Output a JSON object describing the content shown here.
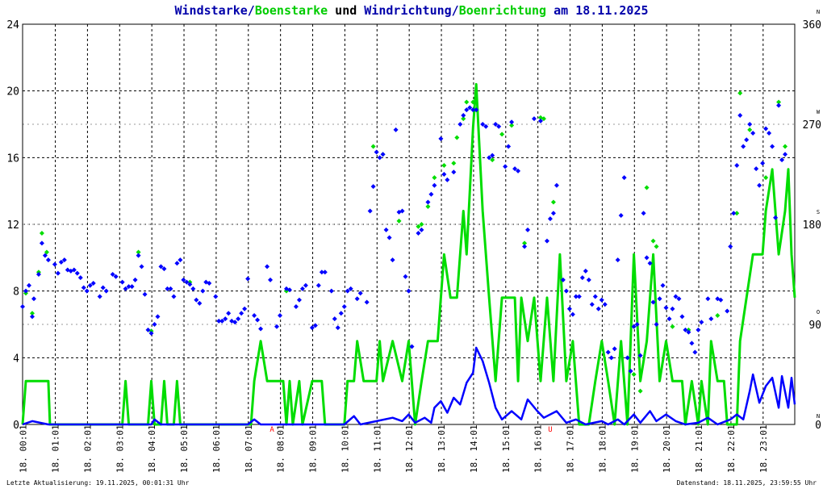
{
  "title": {
    "part1": "Windstarke",
    "sep1": "/",
    "part2": "Boenstarke",
    "part3": " und ",
    "part4": "Windrichtung",
    "sep2": "/",
    "part5": "Boenrichtung",
    "part6": " am 18.11.2025"
  },
  "footer": {
    "left": "Letzte Aktualisierung: 19.11.2025, 00:01:31 Uhr",
    "right": "Datenstand: 18.11.2025, 23:59:55 Uhr"
  },
  "colors": {
    "wind": "#0000ff",
    "gust": "#00dd00",
    "grid": "#000000",
    "title_blue": "#0000aa",
    "title_green": "#00cc00",
    "marker_red": "#ff0000"
  },
  "chart_data": {
    "type": "line",
    "y_left": {
      "ticks": [
        "0",
        "4",
        "8",
        "12",
        "16",
        "20",
        "24"
      ],
      "lim": [
        0,
        24
      ]
    },
    "y_right": {
      "ticks": [
        "0",
        "90",
        "180",
        "270",
        "360"
      ],
      "lim": [
        0,
        360
      ],
      "compass": [
        "N",
        "O",
        "S",
        "W",
        "N"
      ]
    },
    "x_labels": [
      "18. 00:01",
      "18. 01:01",
      "18. 02:01",
      "18. 03:01",
      "18. 04:01",
      "18. 05:01",
      "18. 06:01",
      "18. 07:01",
      "18. 08:01",
      "18. 09:01",
      "18. 10:01",
      "18. 11:01",
      "18. 12:01",
      "18. 13:01",
      "18. 14:01",
      "18. 15:01",
      "18. 16:01",
      "18. 17:01",
      "18. 18:01",
      "18. 19:01",
      "18. 20:01",
      "18. 21:01",
      "18. 22:01",
      "18. 23:01"
    ],
    "x_markers": [
      {
        "hour": 7.75,
        "label": "A"
      },
      {
        "hour": 16.4,
        "label": "U"
      }
    ],
    "wind_speed": [
      [
        0,
        0
      ],
      [
        0.3,
        0.2
      ],
      [
        0.8,
        0
      ],
      [
        4,
        0
      ],
      [
        4.1,
        0.3
      ],
      [
        4.3,
        0
      ],
      [
        7,
        0
      ],
      [
        7.2,
        0.3
      ],
      [
        7.4,
        0
      ],
      [
        9,
        0
      ],
      [
        10,
        0
      ],
      [
        10.3,
        0.5
      ],
      [
        10.5,
        0
      ],
      [
        11,
        0.2
      ],
      [
        11.5,
        0.4
      ],
      [
        11.8,
        0.2
      ],
      [
        12,
        0.6
      ],
      [
        12.2,
        0.1
      ],
      [
        12.5,
        0.4
      ],
      [
        12.7,
        0.1
      ],
      [
        12.8,
        1
      ],
      [
        13,
        1.4
      ],
      [
        13.2,
        0.7
      ],
      [
        13.4,
        1.6
      ],
      [
        13.6,
        1.2
      ],
      [
        13.8,
        2.5
      ],
      [
        14,
        3.1
      ],
      [
        14.1,
        4.6
      ],
      [
        14.3,
        3.8
      ],
      [
        14.5,
        2.5
      ],
      [
        14.7,
        1
      ],
      [
        14.9,
        0.3
      ],
      [
        15.2,
        0.8
      ],
      [
        15.5,
        0.3
      ],
      [
        15.7,
        1.5
      ],
      [
        16,
        0.8
      ],
      [
        16.2,
        0.4
      ],
      [
        16.6,
        0.8
      ],
      [
        16.9,
        0.1
      ],
      [
        17.2,
        0.3
      ],
      [
        17.5,
        0
      ],
      [
        18,
        0.2
      ],
      [
        18.2,
        0
      ],
      [
        18.5,
        0.3
      ],
      [
        18.7,
        0
      ],
      [
        19,
        0.6
      ],
      [
        19.2,
        0.1
      ],
      [
        19.5,
        0.8
      ],
      [
        19.7,
        0.2
      ],
      [
        20,
        0.6
      ],
      [
        20.3,
        0.2
      ],
      [
        20.6,
        0
      ],
      [
        21,
        0.1
      ],
      [
        21.3,
        0.4
      ],
      [
        21.6,
        0
      ],
      [
        22,
        0.3
      ],
      [
        22.2,
        0.6
      ],
      [
        22.4,
        0.3
      ],
      [
        22.6,
        2
      ],
      [
        22.7,
        3
      ],
      [
        22.9,
        1.3
      ],
      [
        23.1,
        2.3
      ],
      [
        23.3,
        2.8
      ],
      [
        23.5,
        1
      ],
      [
        23.6,
        2.9
      ],
      [
        23.8,
        1
      ],
      [
        23.9,
        2.8
      ],
      [
        24,
        1.2
      ]
    ],
    "gust_speed": [
      [
        0,
        0
      ],
      [
        0.1,
        2.6
      ],
      [
        0.8,
        2.6
      ],
      [
        0.85,
        0
      ],
      [
        3.1,
        0
      ],
      [
        3.2,
        2.6
      ],
      [
        3.3,
        0
      ],
      [
        3.9,
        0
      ],
      [
        4,
        2.6
      ],
      [
        4.1,
        0
      ],
      [
        4.3,
        0
      ],
      [
        4.4,
        2.6
      ],
      [
        4.5,
        0
      ],
      [
        4.7,
        0
      ],
      [
        4.8,
        2.6
      ],
      [
        4.9,
        0
      ],
      [
        7.1,
        0
      ],
      [
        7.2,
        2.6
      ],
      [
        7.4,
        5
      ],
      [
        7.6,
        2.6
      ],
      [
        8.1,
        2.6
      ],
      [
        8.2,
        0
      ],
      [
        8.3,
        2.6
      ],
      [
        8.4,
        0
      ],
      [
        8.6,
        2.6
      ],
      [
        8.7,
        0
      ],
      [
        9,
        2.6
      ],
      [
        9.3,
        2.6
      ],
      [
        9.4,
        0
      ],
      [
        10,
        0
      ],
      [
        10.1,
        2.6
      ],
      [
        10.3,
        2.6
      ],
      [
        10.4,
        5
      ],
      [
        10.6,
        2.6
      ],
      [
        11,
        2.6
      ],
      [
        11.1,
        5
      ],
      [
        11.2,
        2.6
      ],
      [
        11.5,
        5
      ],
      [
        11.8,
        2.6
      ],
      [
        12,
        5
      ],
      [
        12.2,
        0
      ],
      [
        12.4,
        2.6
      ],
      [
        12.6,
        5
      ],
      [
        12.9,
        5
      ],
      [
        13,
        7.6
      ],
      [
        13.1,
        10.2
      ],
      [
        13.3,
        7.6
      ],
      [
        13.5,
        7.6
      ],
      [
        13.6,
        10.2
      ],
      [
        13.7,
        12.8
      ],
      [
        13.8,
        10.2
      ],
      [
        14,
        17.8
      ],
      [
        14.1,
        20.4
      ],
      [
        14.3,
        12.8
      ],
      [
        14.5,
        7.6
      ],
      [
        14.7,
        2.6
      ],
      [
        14.9,
        7.6
      ],
      [
        15.3,
        7.6
      ],
      [
        15.4,
        2.6
      ],
      [
        15.5,
        7.6
      ],
      [
        15.7,
        5
      ],
      [
        15.9,
        7.6
      ],
      [
        16.1,
        2.6
      ],
      [
        16.3,
        7.6
      ],
      [
        16.5,
        2.6
      ],
      [
        16.7,
        10.2
      ],
      [
        16.9,
        2.6
      ],
      [
        17.1,
        5
      ],
      [
        17.3,
        0
      ],
      [
        17.6,
        0
      ],
      [
        17.8,
        2.6
      ],
      [
        18,
        5
      ],
      [
        18.2,
        2.6
      ],
      [
        18.4,
        0
      ],
      [
        18.6,
        5
      ],
      [
        18.8,
        0
      ],
      [
        19,
        10.2
      ],
      [
        19.2,
        2.6
      ],
      [
        19.4,
        5
      ],
      [
        19.6,
        10.2
      ],
      [
        19.8,
        2.6
      ],
      [
        20,
        5
      ],
      [
        20.2,
        2.6
      ],
      [
        20.5,
        2.6
      ],
      [
        20.6,
        0
      ],
      [
        20.8,
        2.6
      ],
      [
        21,
        0
      ],
      [
        21.1,
        2.6
      ],
      [
        21.3,
        0
      ],
      [
        21.4,
        5
      ],
      [
        21.6,
        2.6
      ],
      [
        21.8,
        2.6
      ],
      [
        21.9,
        0
      ],
      [
        22.2,
        0
      ],
      [
        22.3,
        5
      ],
      [
        22.5,
        7.6
      ],
      [
        22.7,
        10.2
      ],
      [
        23,
        10.2
      ],
      [
        23.1,
        12.8
      ],
      [
        23.3,
        15.3
      ],
      [
        23.5,
        10.2
      ],
      [
        23.7,
        12.8
      ],
      [
        23.8,
        15.3
      ],
      [
        23.9,
        10.2
      ],
      [
        24,
        7.6
      ]
    ],
    "wind_dir": [
      [
        0,
        106
      ],
      [
        0.1,
        120
      ],
      [
        0.2,
        125
      ],
      [
        0.3,
        97
      ],
      [
        0.35,
        113
      ],
      [
        0.5,
        135
      ],
      [
        0.6,
        163
      ],
      [
        0.7,
        152
      ],
      [
        0.8,
        148
      ],
      [
        1,
        144
      ],
      [
        1.1,
        136
      ],
      [
        1.2,
        146
      ],
      [
        1.3,
        148
      ],
      [
        1.4,
        139
      ],
      [
        1.5,
        138
      ],
      [
        1.6,
        139
      ],
      [
        1.7,
        136
      ],
      [
        1.8,
        132
      ],
      [
        1.9,
        123
      ],
      [
        2,
        120
      ],
      [
        2.1,
        125
      ],
      [
        2.2,
        127
      ],
      [
        2.4,
        115
      ],
      [
        2.5,
        123
      ],
      [
        2.6,
        120
      ],
      [
        2.8,
        135
      ],
      [
        2.9,
        133
      ],
      [
        3.1,
        128
      ],
      [
        3.2,
        122
      ],
      [
        3.3,
        124
      ],
      [
        3.4,
        124
      ],
      [
        3.5,
        130
      ],
      [
        3.6,
        152
      ],
      [
        3.7,
        142
      ],
      [
        3.8,
        117
      ],
      [
        3.9,
        85
      ],
      [
        4,
        82
      ],
      [
        4.1,
        90
      ],
      [
        4.2,
        97
      ],
      [
        4.3,
        142
      ],
      [
        4.4,
        140
      ],
      [
        4.5,
        122
      ],
      [
        4.6,
        122
      ],
      [
        4.7,
        115
      ],
      [
        4.8,
        145
      ],
      [
        4.9,
        148
      ],
      [
        5,
        130
      ],
      [
        5.1,
        128
      ],
      [
        5.2,
        126
      ],
      [
        5.3,
        122
      ],
      [
        5.4,
        112
      ],
      [
        5.5,
        109
      ],
      [
        5.6,
        120
      ],
      [
        5.7,
        128
      ],
      [
        5.8,
        127
      ],
      [
        6,
        115
      ],
      [
        6.1,
        93
      ],
      [
        6.2,
        93
      ],
      [
        6.3,
        95
      ],
      [
        6.4,
        100
      ],
      [
        6.5,
        93
      ],
      [
        6.6,
        92
      ],
      [
        6.7,
        95
      ],
      [
        6.8,
        100
      ],
      [
        6.9,
        104
      ],
      [
        7,
        131
      ],
      [
        7.2,
        98
      ],
      [
        7.3,
        94
      ],
      [
        7.4,
        86
      ],
      [
        7.6,
        142
      ],
      [
        7.7,
        130
      ],
      [
        7.9,
        88
      ],
      [
        8,
        98
      ],
      [
        8.2,
        122
      ],
      [
        8.3,
        121
      ],
      [
        8.5,
        106
      ],
      [
        8.6,
        112
      ],
      [
        8.7,
        122
      ],
      [
        8.8,
        125
      ],
      [
        9,
        87
      ],
      [
        9.1,
        89
      ],
      [
        9.2,
        125
      ],
      [
        9.3,
        137
      ],
      [
        9.4,
        137
      ],
      [
        9.6,
        120
      ],
      [
        9.7,
        95
      ],
      [
        9.8,
        87
      ],
      [
        9.9,
        100
      ],
      [
        10,
        106
      ],
      [
        10.1,
        120
      ],
      [
        10.2,
        122
      ],
      [
        10.4,
        113
      ],
      [
        10.5,
        118
      ],
      [
        10.7,
        110
      ],
      [
        10.8,
        192
      ],
      [
        10.9,
        214
      ],
      [
        11,
        245
      ],
      [
        11.1,
        240
      ],
      [
        11.2,
        243
      ],
      [
        11.3,
        175
      ],
      [
        11.4,
        168
      ],
      [
        11.5,
        148
      ],
      [
        11.6,
        265
      ],
      [
        11.7,
        191
      ],
      [
        11.8,
        192
      ],
      [
        11.9,
        133
      ],
      [
        12,
        120
      ],
      [
        12.1,
        70
      ],
      [
        12.3,
        172
      ],
      [
        12.4,
        175
      ],
      [
        12.6,
        200
      ],
      [
        12.7,
        207
      ],
      [
        12.8,
        215
      ],
      [
        13,
        257
      ],
      [
        13.1,
        225
      ],
      [
        13.2,
        220
      ],
      [
        13.4,
        227
      ],
      [
        13.6,
        270
      ],
      [
        13.7,
        278
      ],
      [
        13.8,
        283
      ],
      [
        13.9,
        285
      ],
      [
        14,
        283
      ],
      [
        14.1,
        283
      ],
      [
        14.3,
        270
      ],
      [
        14.4,
        268
      ],
      [
        14.5,
        240
      ],
      [
        14.6,
        242
      ],
      [
        14.7,
        270
      ],
      [
        14.8,
        268
      ],
      [
        15,
        232
      ],
      [
        15.1,
        250
      ],
      [
        15.2,
        272
      ],
      [
        15.3,
        230
      ],
      [
        15.4,
        228
      ],
      [
        15.6,
        160
      ],
      [
        15.7,
        175
      ],
      [
        15.9,
        275
      ],
      [
        16.1,
        273
      ],
      [
        16.3,
        165
      ],
      [
        16.4,
        185
      ],
      [
        16.5,
        190
      ],
      [
        16.6,
        215
      ],
      [
        16.8,
        130
      ],
      [
        16.9,
        120
      ],
      [
        17,
        104
      ],
      [
        17.1,
        99
      ],
      [
        17.2,
        115
      ],
      [
        17.3,
        115
      ],
      [
        17.4,
        132
      ],
      [
        17.5,
        138
      ],
      [
        17.6,
        130
      ],
      [
        17.7,
        108
      ],
      [
        17.8,
        115
      ],
      [
        17.9,
        104
      ],
      [
        18,
        112
      ],
      [
        18.1,
        108
      ],
      [
        18.2,
        65
      ],
      [
        18.3,
        60
      ],
      [
        18.4,
        68
      ],
      [
        18.5,
        148
      ],
      [
        18.6,
        188
      ],
      [
        18.7,
        222
      ],
      [
        18.8,
        60
      ],
      [
        18.9,
        48
      ],
      [
        19,
        88
      ],
      [
        19.1,
        90
      ],
      [
        19.2,
        62
      ],
      [
        19.3,
        190
      ],
      [
        19.4,
        150
      ],
      [
        19.5,
        145
      ],
      [
        19.6,
        110
      ],
      [
        19.7,
        90
      ],
      [
        19.8,
        113
      ],
      [
        19.9,
        125
      ],
      [
        20,
        105
      ],
      [
        20.1,
        95
      ],
      [
        20.2,
        104
      ],
      [
        20.3,
        115
      ],
      [
        20.4,
        113
      ],
      [
        20.5,
        97
      ],
      [
        20.6,
        85
      ],
      [
        20.7,
        83
      ],
      [
        20.8,
        73
      ],
      [
        20.9,
        65
      ],
      [
        21,
        85
      ],
      [
        21.1,
        92
      ],
      [
        21.3,
        113
      ],
      [
        21.4,
        95
      ],
      [
        21.6,
        113
      ],
      [
        21.7,
        112
      ],
      [
        21.9,
        102
      ],
      [
        22,
        160
      ],
      [
        22.1,
        190
      ],
      [
        22.2,
        233
      ],
      [
        22.3,
        278
      ],
      [
        22.4,
        250
      ],
      [
        22.5,
        256
      ],
      [
        22.6,
        270
      ],
      [
        22.7,
        262
      ],
      [
        22.8,
        230
      ],
      [
        22.9,
        215
      ],
      [
        23,
        235
      ],
      [
        23.1,
        266
      ],
      [
        23.2,
        262
      ],
      [
        23.3,
        250
      ],
      [
        23.4,
        186
      ],
      [
        23.5,
        287
      ],
      [
        23.6,
        238
      ],
      [
        23.7,
        243
      ]
    ],
    "gust_dir": [
      [
        0.1,
        118
      ],
      [
        0.3,
        100
      ],
      [
        0.5,
        137
      ],
      [
        0.6,
        172
      ],
      [
        0.75,
        155
      ],
      [
        3.6,
        155
      ],
      [
        4,
        84
      ],
      [
        5.2,
        128
      ],
      [
        8.2,
        120
      ],
      [
        10.9,
        250
      ],
      [
        11.2,
        243
      ],
      [
        11.7,
        183
      ],
      [
        12.3,
        178
      ],
      [
        12.4,
        180
      ],
      [
        12.6,
        196
      ],
      [
        12.8,
        222
      ],
      [
        13.1,
        233
      ],
      [
        13.4,
        235
      ],
      [
        13.5,
        258
      ],
      [
        13.7,
        275
      ],
      [
        13.8,
        290
      ],
      [
        14,
        290
      ],
      [
        14.6,
        238
      ],
      [
        14.9,
        261
      ],
      [
        15.2,
        269
      ],
      [
        15.6,
        163
      ],
      [
        16.1,
        276
      ],
      [
        16.2,
        275
      ],
      [
        16.5,
        200
      ],
      [
        19,
        45
      ],
      [
        19.2,
        30
      ],
      [
        19.4,
        213
      ],
      [
        19.6,
        165
      ],
      [
        19.7,
        160
      ],
      [
        20.2,
        88
      ],
      [
        20.7,
        85
      ],
      [
        21.6,
        98
      ],
      [
        22.2,
        190
      ],
      [
        22.3,
        298
      ],
      [
        22.6,
        265
      ],
      [
        23.1,
        222
      ],
      [
        23.5,
        290
      ],
      [
        23.7,
        250
      ]
    ]
  }
}
